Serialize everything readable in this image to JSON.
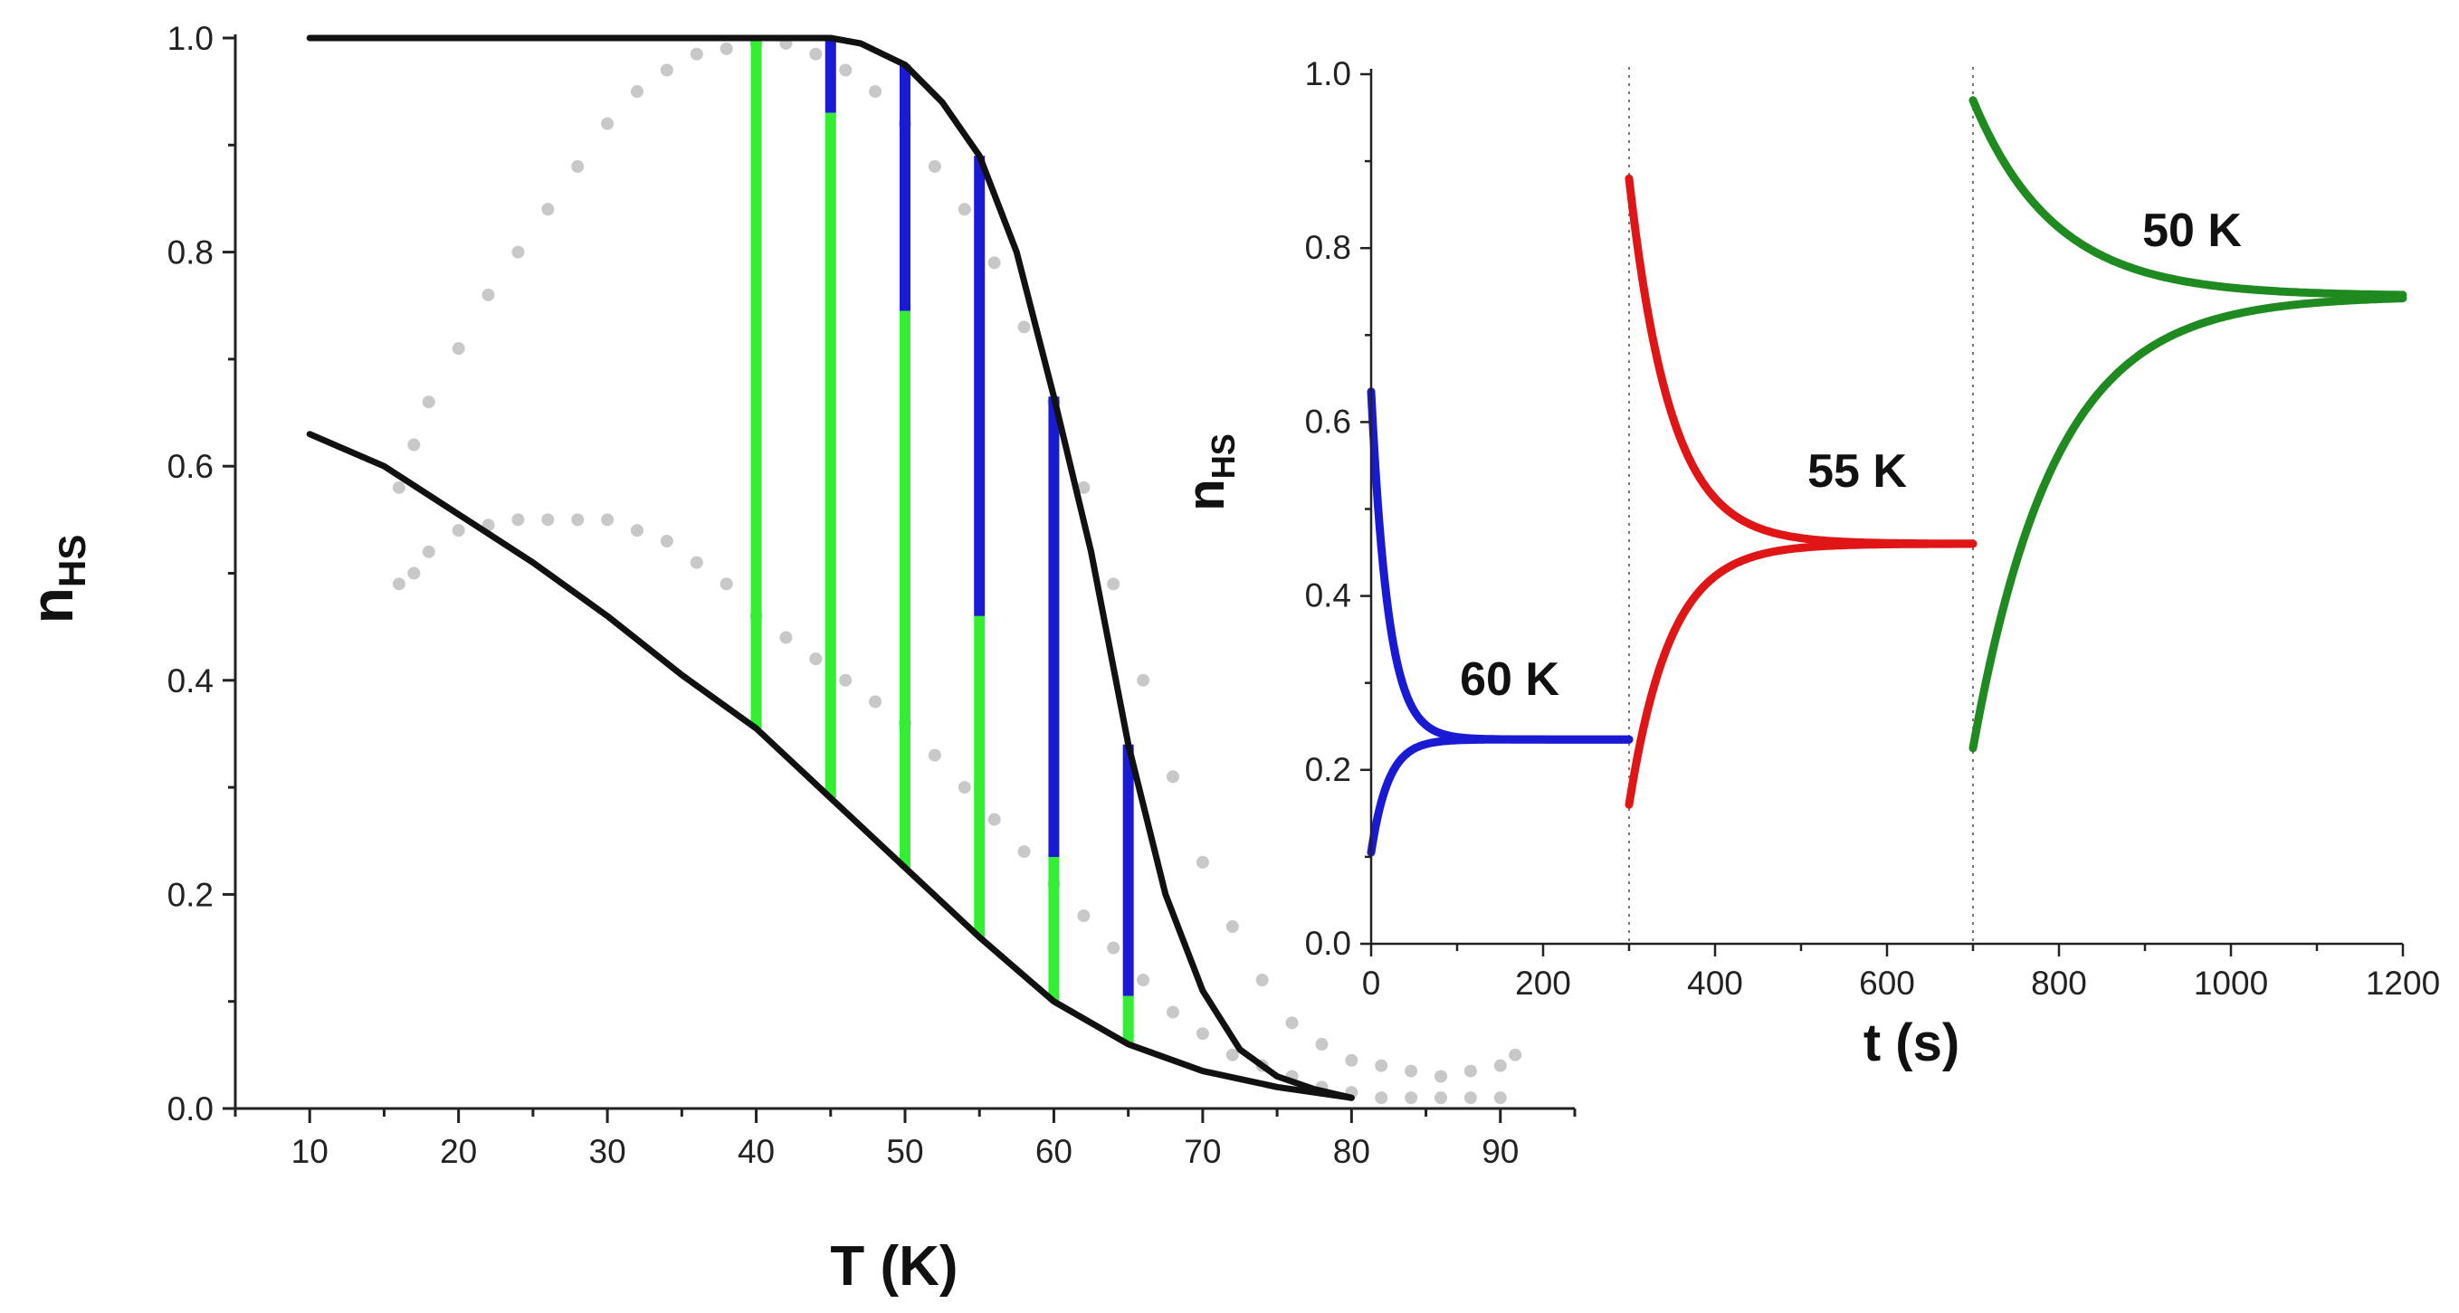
{
  "chart_data": [
    {
      "type": "line",
      "title": "",
      "xlabel": "T (K)",
      "ylabel_main": "n",
      "ylabel_sub": "HS",
      "xlim": [
        5,
        95
      ],
      "ylim": [
        0,
        1
      ],
      "x_ticks": [
        "10",
        "20",
        "30",
        "40",
        "50",
        "60",
        "70",
        "80",
        "90"
      ],
      "y_ticks": [
        "0.0",
        "0.2",
        "0.4",
        "0.6",
        "0.8",
        "1.0"
      ],
      "series": [
        {
          "name": "upper-curve",
          "color": "#111111",
          "points": [
            [
              10,
              1.0
            ],
            [
              30,
              1.0
            ],
            [
              40,
              1.0
            ],
            [
              45,
              1.0
            ],
            [
              47,
              0.995
            ],
            [
              50,
              0.975
            ],
            [
              52.5,
              0.94
            ],
            [
              55,
              0.89
            ],
            [
              57.5,
              0.8
            ],
            [
              60,
              0.665
            ],
            [
              62.5,
              0.52
            ],
            [
              65,
              0.34
            ],
            [
              67.5,
              0.2
            ],
            [
              70,
              0.11
            ],
            [
              72.5,
              0.055
            ],
            [
              75,
              0.03
            ],
            [
              77.5,
              0.018
            ],
            [
              80,
              0.01
            ]
          ]
        },
        {
          "name": "lower-curve",
          "color": "#111111",
          "points": [
            [
              10,
              0.63
            ],
            [
              15,
              0.6
            ],
            [
              20,
              0.555
            ],
            [
              25,
              0.51
            ],
            [
              30,
              0.46
            ],
            [
              35,
              0.405
            ],
            [
              40,
              0.355
            ],
            [
              45,
              0.29
            ],
            [
              50,
              0.225
            ],
            [
              55,
              0.16
            ],
            [
              60,
              0.1
            ],
            [
              65,
              0.06
            ],
            [
              70,
              0.035
            ],
            [
              75,
              0.02
            ],
            [
              80,
              0.01
            ]
          ]
        },
        {
          "name": "experimental-gray-upper",
          "color": "#c8c8c8",
          "points": [
            [
              16,
              0.58
            ],
            [
              17,
              0.62
            ],
            [
              18,
              0.66
            ],
            [
              20,
              0.71
            ],
            [
              22,
              0.76
            ],
            [
              24,
              0.8
            ],
            [
              26,
              0.84
            ],
            [
              28,
              0.88
            ],
            [
              30,
              0.92
            ],
            [
              32,
              0.95
            ],
            [
              34,
              0.97
            ],
            [
              36,
              0.985
            ],
            [
              38,
              0.99
            ],
            [
              40,
              0.995
            ],
            [
              42,
              0.995
            ],
            [
              44,
              0.985
            ],
            [
              46,
              0.97
            ],
            [
              48,
              0.95
            ],
            [
              50,
              0.92
            ],
            [
              52,
              0.88
            ],
            [
              54,
              0.84
            ],
            [
              56,
              0.79
            ],
            [
              58,
              0.73
            ],
            [
              60,
              0.66
            ],
            [
              62,
              0.58
            ],
            [
              64,
              0.49
            ],
            [
              66,
              0.4
            ],
            [
              68,
              0.31
            ],
            [
              70,
              0.23
            ],
            [
              72,
              0.17
            ],
            [
              74,
              0.12
            ],
            [
              76,
              0.08
            ],
            [
              78,
              0.06
            ],
            [
              80,
              0.045
            ],
            [
              82,
              0.04
            ],
            [
              84,
              0.035
            ],
            [
              86,
              0.03
            ],
            [
              88,
              0.035
            ],
            [
              90,
              0.04
            ],
            [
              91,
              0.05
            ]
          ]
        },
        {
          "name": "experimental-gray-lower",
          "color": "#c8c8c8",
          "points": [
            [
              16,
              0.49
            ],
            [
              17,
              0.5
            ],
            [
              18,
              0.52
            ],
            [
              20,
              0.54
            ],
            [
              22,
              0.545
            ],
            [
              24,
              0.55
            ],
            [
              26,
              0.55
            ],
            [
              28,
              0.55
            ],
            [
              30,
              0.55
            ],
            [
              32,
              0.54
            ],
            [
              34,
              0.53
            ],
            [
              36,
              0.51
            ],
            [
              38,
              0.49
            ],
            [
              40,
              0.46
            ],
            [
              42,
              0.44
            ],
            [
              44,
              0.42
            ],
            [
              46,
              0.4
            ],
            [
              48,
              0.38
            ],
            [
              50,
              0.36
            ],
            [
              52,
              0.33
            ],
            [
              54,
              0.3
            ],
            [
              56,
              0.27
            ],
            [
              58,
              0.24
            ],
            [
              60,
              0.21
            ],
            [
              62,
              0.18
            ],
            [
              64,
              0.15
            ],
            [
              66,
              0.12
            ],
            [
              68,
              0.09
            ],
            [
              70,
              0.07
            ],
            [
              72,
              0.05
            ],
            [
              74,
              0.04
            ],
            [
              76,
              0.03
            ],
            [
              78,
              0.02
            ],
            [
              80,
              0.015
            ],
            [
              82,
              0.01
            ],
            [
              84,
              0.01
            ],
            [
              86,
              0.01
            ],
            [
              88,
              0.01
            ],
            [
              90,
              0.01
            ]
          ]
        }
      ],
      "vertical_bars": [
        {
          "T": 40,
          "green_from": 0.355,
          "green_to": 1.0,
          "blue_from": 1.0,
          "blue_to": 1.0
        },
        {
          "T": 45,
          "green_from": 0.29,
          "green_to": 0.93,
          "blue_from": 0.93,
          "blue_to": 1.0
        },
        {
          "T": 50,
          "green_from": 0.225,
          "green_to": 0.745,
          "blue_from": 0.745,
          "blue_to": 0.975
        },
        {
          "T": 55,
          "green_from": 0.16,
          "green_to": 0.46,
          "blue_from": 0.46,
          "blue_to": 0.89
        },
        {
          "T": 60,
          "green_from": 0.1,
          "green_to": 0.235,
          "blue_from": 0.235,
          "blue_to": 0.665
        },
        {
          "T": 65,
          "green_from": 0.06,
          "green_to": 0.105,
          "blue_from": 0.105,
          "blue_to": 0.34
        }
      ],
      "bar_colors": {
        "green": "#33ee33",
        "blue": "#1a1ad4"
      }
    },
    {
      "type": "line",
      "title": "",
      "xlabel": "t (s)",
      "ylabel_main": "n",
      "ylabel_sub": "HS",
      "xlim": [
        0,
        1200
      ],
      "ylim": [
        0,
        1
      ],
      "x_ticks": [
        "0",
        "200",
        "400",
        "600",
        "800",
        "1000",
        "1200"
      ],
      "y_ticks": [
        "0.0",
        "0.2",
        "0.4",
        "0.6",
        "0.8",
        "1.0"
      ],
      "separators_at": [
        300,
        700
      ],
      "relaxations": [
        {
          "label": "60 K",
          "color": "#1a1ad4",
          "t_start": 0,
          "t_end": 300,
          "eq": 0.235,
          "start_high": 0.635,
          "start_low": 0.105,
          "tau": 20
        },
        {
          "label": "55 K",
          "color": "#e01515",
          "t_start": 300,
          "t_end": 700,
          "eq": 0.46,
          "start_high": 0.88,
          "start_low": 0.16,
          "tau": 48
        },
        {
          "label": "50 K",
          "color": "#1f8a1f",
          "t_start": 700,
          "t_end": 1200,
          "eq": 0.745,
          "start_high": 0.97,
          "start_low": 0.225,
          "tau": 95
        }
      ]
    }
  ]
}
